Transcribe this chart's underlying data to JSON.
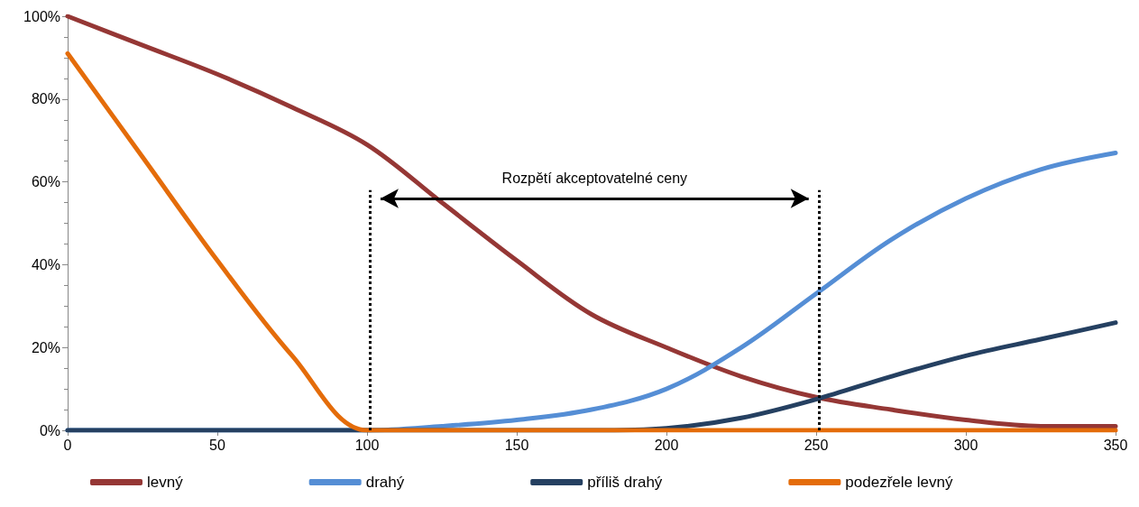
{
  "chart_data": {
    "type": "line",
    "x": [
      0,
      25,
      50,
      75,
      100,
      125,
      150,
      175,
      200,
      225,
      250,
      275,
      300,
      325,
      350
    ],
    "series": [
      {
        "name": "levný",
        "color": "#953735",
        "values": [
          100,
          93,
          86,
          78,
          69,
          55,
          41,
          28,
          20,
          13,
          8,
          5,
          2.5,
          1,
          1
        ]
      },
      {
        "name": "drahý",
        "color": "#558ed5",
        "values": [
          0,
          0,
          0,
          0,
          0,
          1,
          2.5,
          5,
          10,
          20,
          33,
          46,
          56,
          63,
          67
        ]
      },
      {
        "name": "příliš drahý",
        "color": "#254061",
        "values": [
          0,
          0,
          0,
          0,
          0,
          0,
          0,
          0,
          0.5,
          3,
          7.5,
          13,
          18,
          22,
          26
        ]
      },
      {
        "name": "podezřele levný",
        "color": "#e46c0a",
        "values": [
          91,
          66,
          41,
          18,
          0,
          0,
          0,
          0,
          0,
          0,
          0,
          0,
          0,
          0,
          0
        ]
      }
    ],
    "xlim": [
      0,
      350
    ],
    "xticks": [
      0,
      50,
      100,
      150,
      200,
      250,
      300,
      350
    ],
    "ylim": [
      0,
      100
    ],
    "yticks": [
      {
        "value": 0,
        "label": "0%"
      },
      {
        "value": 20,
        "label": "20%"
      },
      {
        "value": 40,
        "label": "40%"
      },
      {
        "value": 60,
        "label": "60%"
      },
      {
        "value": 80,
        "label": "80%"
      },
      {
        "value": 100,
        "label": "100%"
      }
    ],
    "ref_lines": [
      {
        "axis": "x",
        "value": 101,
        "line_style": "dotted",
        "color": "#000000"
      },
      {
        "axis": "x",
        "value": 251,
        "line_style": "dotted",
        "color": "#000000"
      }
    ],
    "annotations": [
      "Rozpětí akceptovatelné ceny"
    ],
    "grid": false,
    "legend": "bottom",
    "marker": "none",
    "line_style": "solid"
  }
}
